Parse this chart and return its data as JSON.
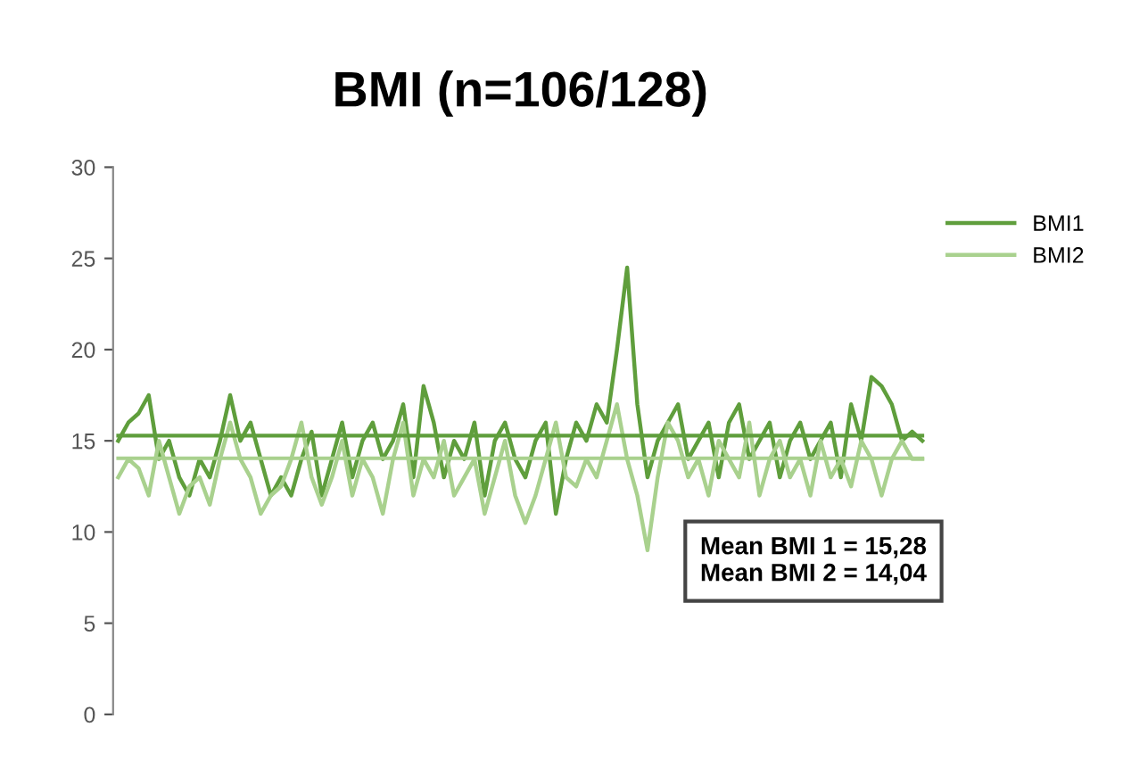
{
  "chart_data": {
    "type": "line",
    "title": "BMI (n=106/128)",
    "categories": [
      null,
      null,
      null,
      null,
      null,
      null,
      null,
      null,
      null,
      null,
      null,
      null,
      null,
      null,
      null,
      null,
      null,
      null,
      null,
      null,
      null,
      null,
      null,
      null,
      null,
      null,
      null,
      null,
      null,
      null,
      null,
      null,
      null,
      null,
      null,
      null,
      null,
      null,
      null,
      null,
      null,
      null,
      null,
      null,
      null,
      null,
      null,
      null,
      null,
      null,
      null,
      null,
      null,
      null,
      null,
      null,
      null,
      null,
      null,
      null,
      null,
      null,
      null,
      null,
      null,
      null,
      null,
      null,
      null,
      null,
      null,
      null,
      null,
      null,
      null,
      null,
      null,
      null,
      null,
      null
    ],
    "series": [
      {
        "name": "BMI1",
        "color": "#5f9e3c",
        "values": [
          15,
          16,
          16.5,
          17.5,
          14,
          15,
          13,
          12,
          14,
          13,
          15,
          17.5,
          15,
          16,
          14,
          12,
          13,
          12,
          14,
          15.5,
          12,
          14,
          16,
          13,
          15,
          16,
          14,
          15,
          17,
          13,
          18,
          16,
          13,
          15,
          14,
          16,
          12,
          15,
          16,
          14,
          13,
          15,
          16,
          11,
          14,
          16,
          15,
          17,
          16,
          20,
          24.5,
          17,
          13,
          15,
          16,
          17,
          14,
          15,
          16,
          13,
          16,
          17,
          14,
          15,
          16,
          13,
          15,
          16,
          14,
          15,
          16,
          13,
          17,
          15,
          18.5,
          18,
          17,
          15,
          15.5,
          15
        ]
      },
      {
        "name": "BMI2",
        "color": "#a9d18e",
        "values": [
          13,
          14,
          13.5,
          12,
          15,
          13,
          11,
          12.5,
          13,
          11.5,
          14,
          16,
          14,
          13,
          11,
          12,
          12.5,
          14,
          16,
          13,
          11.5,
          13,
          15,
          12,
          14,
          13,
          11,
          14,
          16,
          12,
          14,
          13,
          15,
          12,
          13,
          14,
          11,
          13,
          15,
          12,
          10.5,
          12,
          14,
          16,
          13,
          12.5,
          14,
          13,
          15,
          17,
          14,
          12,
          9,
          13,
          16,
          15,
          13,
          14,
          12,
          15,
          14,
          13,
          16,
          12,
          14,
          15,
          13,
          14,
          12,
          15,
          13,
          14,
          12.5,
          15,
          14,
          12,
          14,
          15,
          14,
          14
        ]
      }
    ],
    "ref_lines": [
      {
        "axis": "y",
        "value": 15.28,
        "color": "#5f9e3c"
      },
      {
        "axis": "y",
        "value": 14.04,
        "color": "#a9d18e"
      }
    ],
    "annotations": [
      "Mean BMI 1 = 15,28\nMean BMI 2 = 14,04"
    ],
    "ylim": [
      0,
      30
    ],
    "yticks": [
      0,
      5,
      10,
      15,
      20,
      25,
      30
    ],
    "tick_labels": "y",
    "legend": "top right",
    "marker": "none",
    "line_style": "solid",
    "grid": false
  }
}
